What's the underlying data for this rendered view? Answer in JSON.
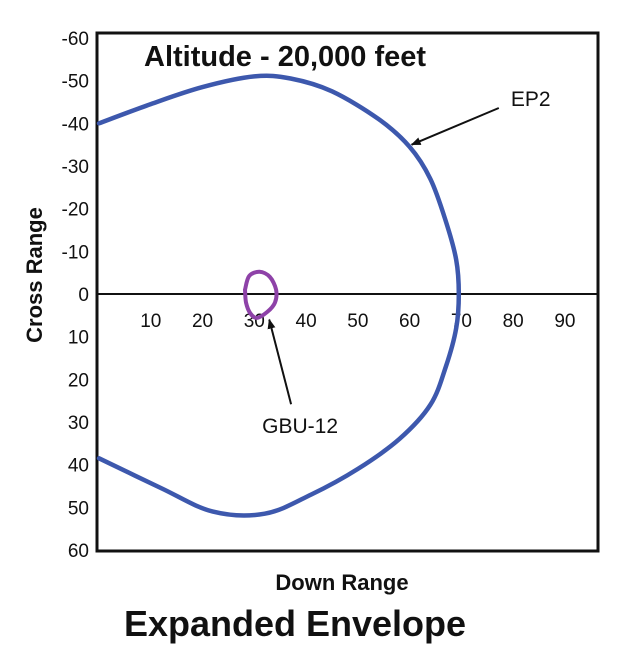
{
  "chart_data": {
    "type": "line",
    "title": "Altitude - 20,000 feet",
    "xlabel": "Down Range",
    "ylabel": "Cross Range",
    "xlim": [
      0,
      96
    ],
    "ylim": [
      -60,
      60
    ],
    "x_ticks": [
      "10",
      "20",
      "30",
      "40",
      "50",
      "60",
      "70",
      "80",
      "90"
    ],
    "x_tick_values": [
      10,
      20,
      30,
      40,
      50,
      60,
      70,
      80,
      90
    ],
    "y_ticks": [
      "-60",
      "-50",
      "-40",
      "-30",
      "-20",
      "-10",
      "0",
      "10",
      "20",
      "30",
      "40",
      "50",
      "60"
    ],
    "y_tick_values": [
      -60,
      -50,
      -40,
      -30,
      -20,
      -10,
      0,
      10,
      20,
      30,
      40,
      50,
      60
    ],
    "grid": false,
    "series": [
      {
        "name": "EP2",
        "color": "#3d58ad",
        "x": [
          0,
          10,
          20,
          30,
          37,
          45,
          54,
          60,
          64,
          67,
          69,
          69.5,
          69,
          67,
          64,
          58,
          50,
          41,
          32,
          22,
          12,
          0
        ],
        "y": [
          -40,
          -44.5,
          -48.5,
          -51,
          -50.5,
          -47.5,
          -41,
          -34.5,
          -27,
          -17,
          -8,
          0,
          8,
          17,
          26,
          34,
          41,
          47,
          51.5,
          51,
          45.5,
          38.5
        ]
      },
      {
        "name": "GBU-12",
        "color": "#8e42a8",
        "x": [
          28.2,
          29,
          31,
          33,
          34.2,
          34,
          32.5,
          30.5,
          29.2,
          28.4,
          28.2
        ],
        "y": [
          -1,
          -4.2,
          -5.2,
          -4,
          -1,
          2,
          4.2,
          5.6,
          4.5,
          2,
          -1
        ]
      }
    ],
    "annotations": [
      {
        "text": "EP2",
        "target": [
          60,
          -35
        ],
        "label_at": [
          78,
          -45
        ]
      },
      {
        "text": "GBU-12",
        "target": [
          32.5,
          6
        ],
        "label_at": [
          40,
          27
        ]
      }
    ]
  },
  "caption": "Expanded Envelope"
}
